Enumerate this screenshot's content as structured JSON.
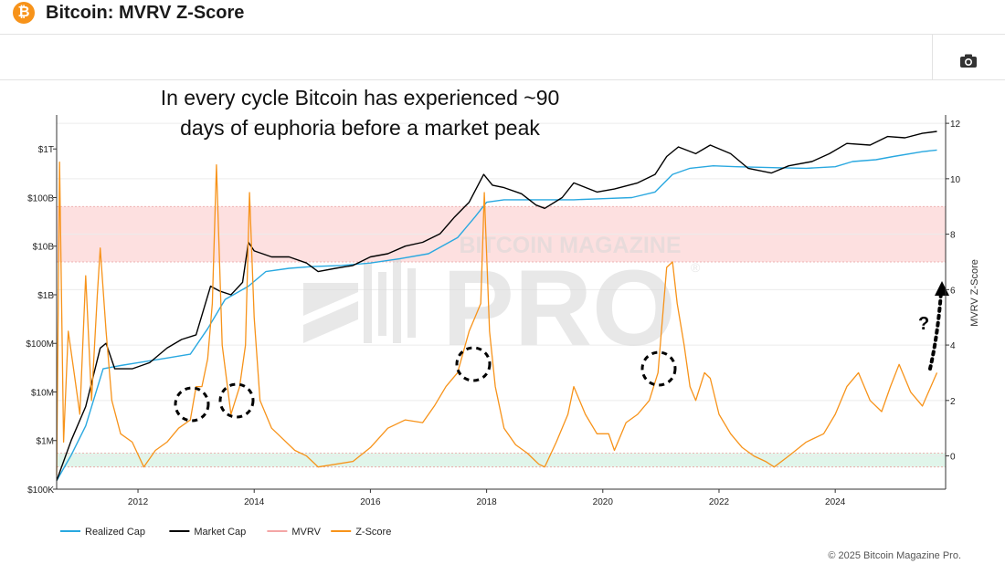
{
  "header": {
    "logo_glyph": "₿",
    "title": "Bitcoin: MVRV Z-Score",
    "camera_icon": "camera-icon"
  },
  "annotation": {
    "line1": "In every cycle Bitcoin has experienced ~90",
    "line2": "days of euphoria before a market peak",
    "question": "?"
  },
  "watermark": {
    "line1": "BITCOIN MAGAZINE",
    "line2": "PRO",
    "reg": "®"
  },
  "footer": {
    "copyright": "© 2025 Bitcoin Magazine Pro."
  },
  "chart_data": {
    "type": "line",
    "title": "",
    "x_ticks": [
      "2012",
      "2014",
      "2016",
      "2018",
      "2020",
      "2022",
      "2024"
    ],
    "xlim": [
      2010.6,
      2025.9
    ],
    "left_axis": {
      "scale": "log",
      "ticks": [
        "$100K",
        "$1M",
        "$10M",
        "$100M",
        "$1B",
        "$10B",
        "$100B",
        "$1T"
      ],
      "ylim": [
        100000,
        5000000000000
      ]
    },
    "right_axis": {
      "label": "MVRV Z-Score",
      "ticks": [
        "0",
        "2",
        "4",
        "6",
        "8",
        "10",
        "12"
      ],
      "ylim": [
        -1.2,
        12.3
      ]
    },
    "bands": [
      {
        "axis": "right",
        "from": 7,
        "to": 9,
        "color": "#fde0e0"
      },
      {
        "axis": "right",
        "from": -0.4,
        "to": 0.1,
        "color": "#e0f5ea"
      }
    ],
    "legend": {
      "placement": "bottom-left",
      "items": [
        {
          "name": "Realized Cap",
          "color": "#29a8e0"
        },
        {
          "name": "Market Cap",
          "color": "#000000"
        },
        {
          "name": "MVRV",
          "color": "#f4a6a6"
        },
        {
          "name": "Z-Score",
          "color": "#f7931a"
        }
      ]
    },
    "series": [
      {
        "name": "Market Cap",
        "axis": "left",
        "color": "#000000",
        "x": [
          2010.6,
          2010.85,
          2011.1,
          2011.35,
          2011.45,
          2011.6,
          2011.75,
          2011.9,
          2012.2,
          2012.5,
          2012.75,
          2013.0,
          2013.25,
          2013.4,
          2013.6,
          2013.8,
          2013.9,
          2014.0,
          2014.3,
          2014.6,
          2014.9,
          2015.1,
          2015.4,
          2015.7,
          2016.0,
          2016.3,
          2016.6,
          2016.9,
          2017.2,
          2017.45,
          2017.7,
          2017.95,
          2018.1,
          2018.3,
          2018.6,
          2018.85,
          2019.0,
          2019.3,
          2019.5,
          2019.9,
          2020.2,
          2020.6,
          2020.9,
          2021.1,
          2021.3,
          2021.6,
          2021.85,
          2022.2,
          2022.5,
          2022.9,
          2023.2,
          2023.6,
          2023.9,
          2024.2,
          2024.6,
          2024.9,
          2025.2,
          2025.5,
          2025.75
        ],
        "y": [
          150000,
          1000000,
          5000000,
          80000000,
          100000000,
          30000000,
          30000000,
          30000000,
          40000000,
          80000000,
          120000000,
          150000000,
          1500000000,
          1200000000,
          1000000000,
          1800000000,
          12000000000,
          8000000000,
          6000000000,
          6000000000,
          4500000000,
          3000000000,
          3500000000,
          4000000000,
          6000000000,
          7000000000,
          10000000000,
          12000000000,
          18000000000,
          40000000000,
          80000000000,
          300000000000,
          180000000000,
          160000000000,
          120000000000,
          70000000000,
          60000000000,
          100000000000,
          200000000000,
          130000000000,
          150000000000,
          200000000000,
          300000000000,
          700000000000,
          1100000000000,
          800000000000,
          1200000000000,
          800000000000,
          400000000000,
          320000000000,
          450000000000,
          550000000000,
          800000000000,
          1300000000000,
          1200000000000,
          1800000000000,
          1700000000000,
          2100000000000,
          2300000000000
        ]
      },
      {
        "name": "Realized Cap",
        "axis": "left",
        "color": "#29a8e0",
        "x": [
          2010.6,
          2010.85,
          2011.1,
          2011.4,
          2011.7,
          2012.0,
          2012.5,
          2012.9,
          2013.2,
          2013.5,
          2013.9,
          2014.2,
          2014.6,
          2015.0,
          2015.5,
          2016.0,
          2016.5,
          2017.0,
          2017.5,
          2017.8,
          2018.0,
          2018.3,
          2018.7,
          2019.0,
          2019.5,
          2020.0,
          2020.5,
          2020.9,
          2021.2,
          2021.5,
          2021.9,
          2022.3,
          2022.7,
          2023.0,
          2023.5,
          2024.0,
          2024.3,
          2024.7,
          2025.0,
          2025.5,
          2025.75
        ],
        "y": [
          150000,
          500000,
          2000000,
          30000000,
          35000000,
          40000000,
          50000000,
          60000000,
          200000000,
          800000000,
          1500000000,
          3000000000,
          3500000000,
          3800000000,
          4000000000,
          4500000000,
          5500000000,
          7000000000,
          15000000000,
          40000000000,
          80000000000,
          90000000000,
          90000000000,
          90000000000,
          90000000000,
          95000000000,
          100000000000,
          130000000000,
          300000000000,
          400000000000,
          450000000000,
          430000000000,
          420000000000,
          410000000000,
          400000000000,
          430000000000,
          550000000000,
          600000000000,
          700000000000,
          880000000000,
          950000000000
        ]
      },
      {
        "name": "Z-Score",
        "axis": "right",
        "color": "#f7931a",
        "x": [
          2010.6,
          2010.65,
          2010.72,
          2010.8,
          2010.9,
          2011.0,
          2011.1,
          2011.2,
          2011.3,
          2011.35,
          2011.45,
          2011.55,
          2011.7,
          2011.9,
          2012.1,
          2012.3,
          2012.5,
          2012.7,
          2012.9,
          2013.0,
          2013.1,
          2013.2,
          2013.28,
          2013.35,
          2013.45,
          2013.6,
          2013.75,
          2013.85,
          2013.92,
          2014.0,
          2014.1,
          2014.3,
          2014.5,
          2014.7,
          2014.9,
          2015.1,
          2015.4,
          2015.7,
          2016.0,
          2016.3,
          2016.6,
          2016.9,
          2017.1,
          2017.3,
          2017.5,
          2017.7,
          2017.8,
          2017.9,
          2017.96,
          2018.05,
          2018.15,
          2018.3,
          2018.5,
          2018.7,
          2018.9,
          2019.0,
          2019.2,
          2019.4,
          2019.5,
          2019.7,
          2019.9,
          2020.1,
          2020.2,
          2020.4,
          2020.6,
          2020.8,
          2020.95,
          2021.1,
          2021.2,
          2021.28,
          2021.4,
          2021.5,
          2021.6,
          2021.75,
          2021.85,
          2022.0,
          2022.2,
          2022.4,
          2022.6,
          2022.8,
          2022.95,
          2023.2,
          2023.5,
          2023.8,
          2024.0,
          2024.2,
          2024.4,
          2024.6,
          2024.8,
          2024.95,
          2025.1,
          2025.3,
          2025.5,
          2025.75
        ],
        "y": [
          -0.7,
          10.6,
          0.5,
          4.5,
          3.0,
          1.5,
          6.5,
          2.0,
          5.8,
          7.5,
          4.5,
          2.0,
          0.8,
          0.5,
          -0.4,
          0.2,
          0.5,
          1.0,
          1.3,
          2.5,
          2.5,
          3.5,
          5.5,
          10.5,
          4.0,
          1.5,
          2.5,
          4.0,
          9.5,
          5.0,
          2.0,
          1.0,
          0.6,
          0.2,
          0.0,
          -0.4,
          -0.3,
          -0.2,
          0.3,
          1.0,
          1.3,
          1.2,
          1.8,
          2.5,
          3.0,
          4.5,
          5.0,
          5.5,
          9.5,
          4.5,
          2.5,
          1.0,
          0.4,
          0.1,
          -0.3,
          -0.4,
          0.5,
          1.5,
          2.5,
          1.5,
          0.8,
          0.8,
          0.2,
          1.2,
          1.5,
          2.0,
          3.0,
          6.8,
          7.0,
          5.5,
          4.0,
          2.5,
          2.0,
          3.0,
          2.8,
          1.5,
          0.8,
          0.3,
          0.0,
          -0.2,
          -0.4,
          0.0,
          0.5,
          0.8,
          1.5,
          2.5,
          3.0,
          2.0,
          1.6,
          2.5,
          3.3,
          2.3,
          1.8,
          3.0
        ]
      }
    ]
  }
}
